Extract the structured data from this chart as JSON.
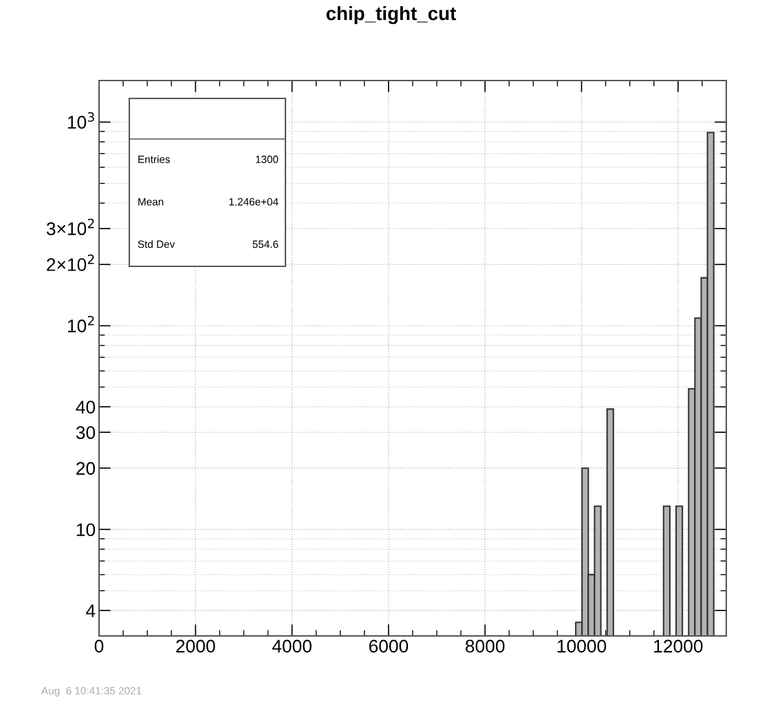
{
  "chart_data": {
    "type": "histogram",
    "title": "chip_tight_cut",
    "bins": [
      9880,
      10010,
      10140,
      10270,
      10400,
      10530,
      10660,
      10790,
      10920,
      11050,
      11180,
      11310,
      11440,
      11570,
      11700,
      11830,
      11960,
      12090,
      12220,
      12350,
      12480,
      12610,
      12740
    ],
    "values": [
      3.5,
      20,
      6,
      13,
      null,
      39,
      null,
      null,
      null,
      null,
      null,
      null,
      null,
      null,
      13,
      null,
      13,
      null,
      49,
      109,
      172,
      889
    ],
    "color": "#b3b3b3",
    "log": "y",
    "xlim": [
      0,
      13000
    ],
    "xticks": [
      0,
      2000,
      4000,
      6000,
      8000,
      10000,
      12000
    ],
    "ylim": [
      3,
      1600
    ],
    "yticks": [
      4,
      10,
      20,
      30,
      40,
      {
        "value": 100,
        "label": "10$^{2}$"
      },
      {
        "value": 200,
        "label": "2×10$^{2}$"
      },
      {
        "value": 300,
        "label": "3×10$^{2}$"
      },
      {
        "value": 1000,
        "label": "10$^{3}$"
      }
    ],
    "grid": true,
    "annotations": [
      "Entries",
      "1300",
      "Mean",
      "1.246e+04",
      "Std Dev",
      "554.6",
      "Aug  6 10:41:35 2021"
    ]
  }
}
